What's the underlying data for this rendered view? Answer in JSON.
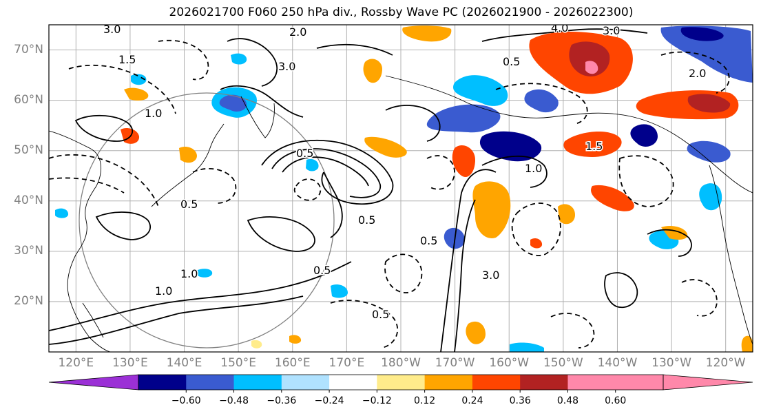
{
  "title": "2026021700 F060 250 hPa div., Rossby Wave PC (2026021900 - 2026022300)",
  "map": {
    "lat_labels": [
      "70°N",
      "60°N",
      "50°N",
      "40°N",
      "30°N",
      "20°N"
    ],
    "lon_labels": [
      "120°E",
      "130°E",
      "140°E",
      "150°E",
      "160°E",
      "170°E",
      "180°W",
      "170°W",
      "160°W",
      "150°W",
      "140°W",
      "130°W",
      "120°W"
    ],
    "lat_values": [
      70,
      60,
      50,
      40,
      30,
      20
    ],
    "lon_values": [
      120,
      130,
      140,
      150,
      160,
      170,
      180,
      190,
      200,
      210,
      220,
      230,
      240
    ],
    "lon_range": [
      115,
      245
    ],
    "lat_range": [
      10,
      75
    ],
    "contour_labels": [
      "3.0",
      "2.0",
      "1.5",
      "1.0",
      "0.5",
      "0.5",
      "0.5",
      "3.0",
      "1.0",
      "4.0",
      "3.0",
      "2.0",
      "0.5",
      "1.0",
      "3.0",
      "1.5",
      "0.5",
      "1.0",
      "0.5",
      "0.5"
    ]
  },
  "colorbar": {
    "ticks": [
      "−0.60",
      "−0.48",
      "−0.36",
      "−0.24",
      "−0.12",
      "0.12",
      "0.24",
      "0.36",
      "0.48",
      "0.60"
    ],
    "colors": [
      "#9b30d6",
      "#00008b",
      "#3a5bd0",
      "#00bfff",
      "#b0e2ff",
      "#ffffff",
      "#ffec8b",
      "#ffa500",
      "#ff4500",
      "#b22222",
      "#ff88aa",
      "#ff88aa"
    ]
  },
  "colors": {
    "grid": "#b0b0b0",
    "contour": "#000000",
    "coast": "#000000",
    "circle": "#808080"
  }
}
